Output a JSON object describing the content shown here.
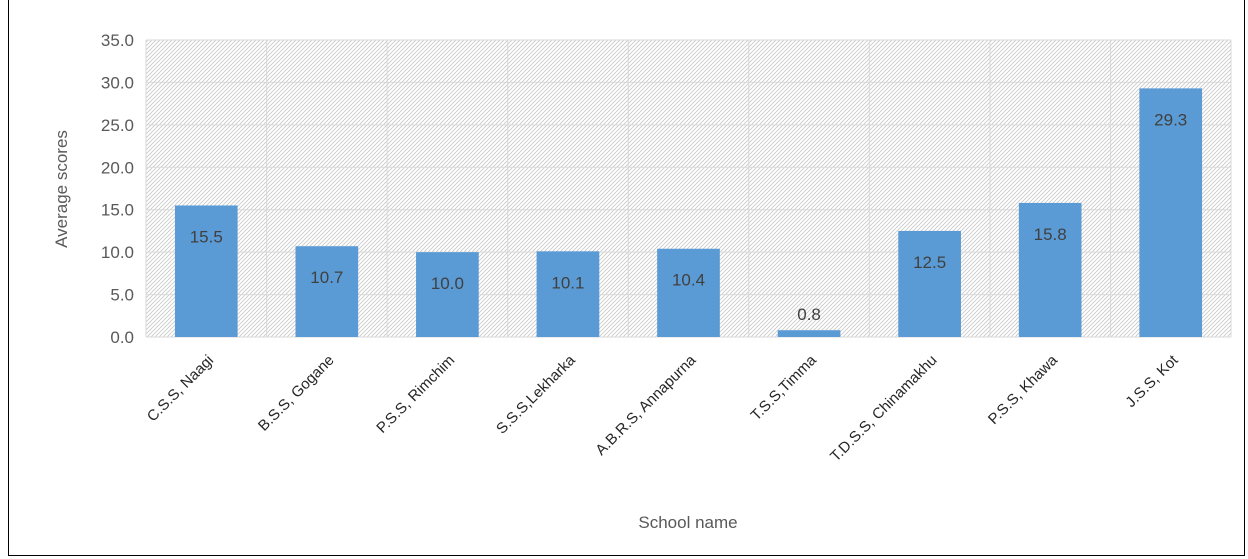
{
  "chart_data": {
    "type": "bar",
    "xlabel": "School name",
    "ylabel": "Average scores",
    "ylim": [
      0,
      35
    ],
    "ytick_step": 5,
    "grid": true,
    "legend": "none",
    "bar_color": "#5b9bd5",
    "categories": [
      "C.S.S, Naagi",
      "B.S.S, Gogane",
      "P.S.S, Rimchim",
      "S.S.S,Lekharka",
      "A.B.R.S, Annapurna",
      "T.S.S,Timma",
      "T.D.S.S, Chinamakhu",
      "P.S.S, Khawa",
      "J.S.S, Kot"
    ],
    "values": [
      15.5,
      10.7,
      10.0,
      10.1,
      10.4,
      0.8,
      12.5,
      15.8,
      29.3
    ],
    "data_labels": [
      "15.5",
      "10.7",
      "10.0",
      "10.1",
      "10.4",
      "0.8",
      "12.5",
      "15.8",
      "29.3"
    ]
  }
}
